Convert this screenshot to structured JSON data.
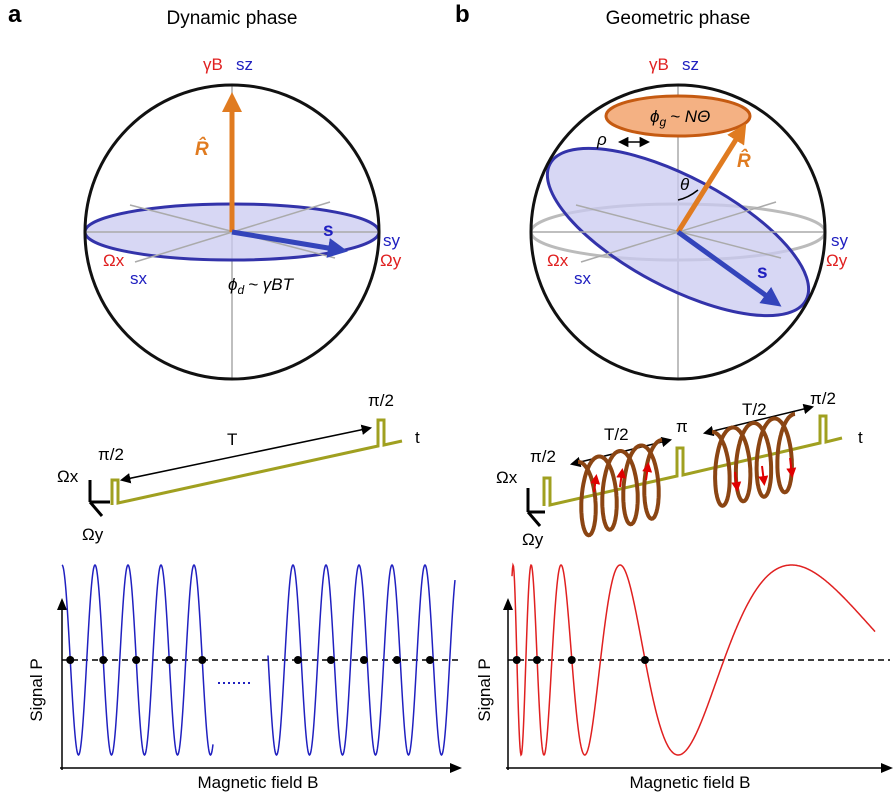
{
  "panel_a": {
    "label": "a",
    "title": "Dynamic phase",
    "sphere": {
      "gamma_b": "γB",
      "sz": "sz",
      "r_hat": "R̂",
      "s": "s",
      "sy": "sy",
      "omega_y": "Ωy",
      "omega_x": "Ωx",
      "sx": "sx",
      "phase": {
        "symbol": "ϕ",
        "sub": "d",
        "rest": "~ γBT"
      }
    },
    "pulse": {
      "pulse_1": "π/2",
      "duration": "T",
      "pulse_2": "π/2",
      "time": "t",
      "omega_x": "Ωx",
      "omega_y": "Ωy"
    },
    "plot": {
      "y_label": "Signal P",
      "x_label": "Magnetic field B"
    }
  },
  "panel_b": {
    "label": "b",
    "title": "Geometric phase",
    "sphere": {
      "gamma_b": "γB",
      "sz": "sz",
      "phase": {
        "symbol": "ϕ",
        "sub": "g",
        "rest": "~ NΘ"
      },
      "rho": "ρ",
      "theta": "θ",
      "r_hat": "R̂",
      "s": "s",
      "sy": "sy",
      "omega_y": "Ωy",
      "omega_x": "Ωx",
      "sx": "sx"
    },
    "pulse": {
      "pulse_1": "π/2",
      "duration_1": "T/2",
      "pulse_2": "π",
      "duration_2": "T/2",
      "pulse_3": "π/2",
      "time": "t",
      "omega_x": "Ωx",
      "omega_y": "Ωy"
    },
    "plot": {
      "y_label": "Signal P",
      "x_label": "Magnetic field B"
    }
  }
}
